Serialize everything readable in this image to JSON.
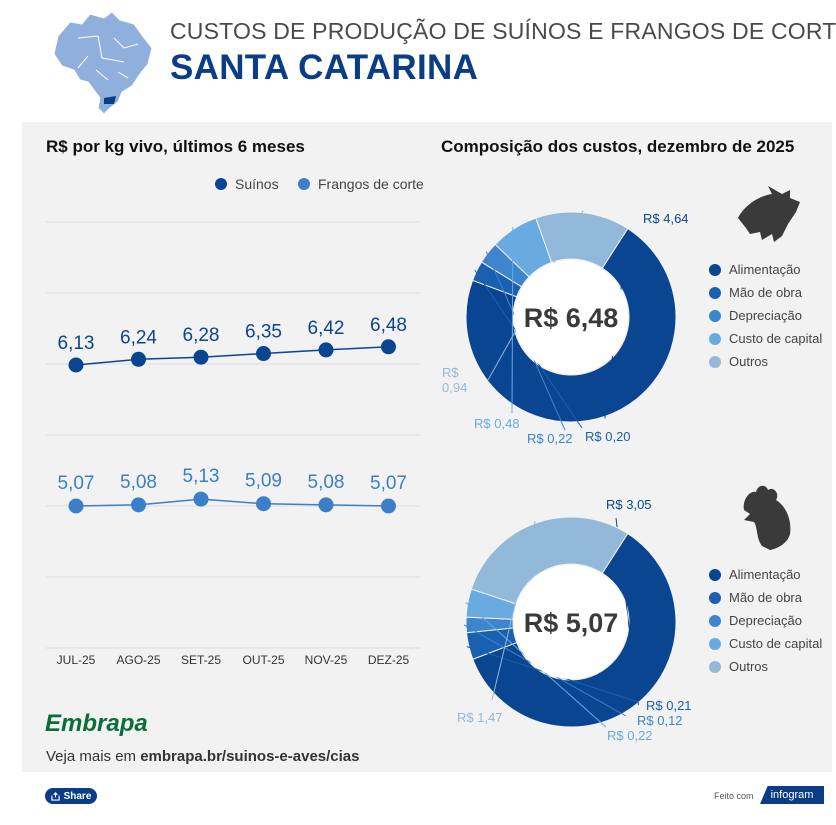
{
  "header": {
    "title": "CUSTOS DE PRODUÇÃO DE SUÍNOS E FRANGOS DE CORTE",
    "subtitle": "SANTA CATARINA"
  },
  "line_section": {
    "title": "R$ por kg vivo, últimos 6 meses",
    "legend": [
      "Suínos",
      "Frangos de corte"
    ]
  },
  "donut_section": {
    "title": "Composição dos custos, dezembro de 2025",
    "legend_top": [
      "Alimentação",
      "Mão de obra",
      "Depreciação",
      "Custo de capital",
      "Outros"
    ],
    "legend_bottom": [
      "Alimentação",
      "Mão de obra",
      "Depreciação",
      "Custo de capital",
      "Outros"
    ]
  },
  "colors": {
    "suinos": "#0a4592",
    "frangos": "#3b7fc8",
    "alimentacao": "#0a4592",
    "mao_de_obra": "#1b5fb0",
    "depreciacao": "#3d85cc",
    "custo_capital": "#69aae0",
    "outros": "#93b9da"
  },
  "chart_data": [
    {
      "type": "line",
      "title": "R$ por kg vivo, últimos 6 meses",
      "categories": [
        "JUL-25",
        "AGO-25",
        "SET-25",
        "OUT-25",
        "NOV-25",
        "DEZ-25"
      ],
      "series": [
        {
          "name": "Suínos",
          "values": [
            6.13,
            6.24,
            6.28,
            6.35,
            6.42,
            6.48
          ],
          "labels": [
            "6,13",
            "6,24",
            "6,28",
            "6,35",
            "6,42",
            "6,48"
          ]
        },
        {
          "name": "Frangos de corte",
          "values": [
            5.07,
            5.08,
            5.13,
            5.09,
            5.08,
            5.07
          ],
          "labels": [
            "5,07",
            "5,08",
            "5,13",
            "5,09",
            "5,08",
            "5,07"
          ]
        }
      ],
      "grid": true
    },
    {
      "type": "pie",
      "center_label": "R$ 6,48",
      "categories": [
        "Alimentação",
        "Mão de obra",
        "Depreciação",
        "Custo de capital",
        "Outros"
      ],
      "values": [
        4.64,
        0.2,
        0.22,
        0.48,
        0.94
      ],
      "labels": [
        "R$ 4,64",
        "R$ 0,20",
        "R$ 0,22",
        "R$ 0,48",
        "R$\n0,94"
      ]
    },
    {
      "type": "pie",
      "center_label": "R$ 5,07",
      "categories": [
        "Alimentação",
        "Mão de obra",
        "Depreciação",
        "Custo de capital",
        "Outros"
      ],
      "values": [
        3.05,
        0.21,
        0.12,
        0.22,
        1.47
      ],
      "labels": [
        "R$ 3,05",
        "R$ 0,21",
        "R$ 0,12",
        "R$ 0,22",
        "R$ 1,47"
      ]
    }
  ],
  "footer": {
    "logo": "Embrapa",
    "prefix": "Veja mais em ",
    "link": "embrapa.br/suinos-e-aves/cias",
    "share": "Share",
    "made_with": "Feito com",
    "brand": "infogram"
  },
  "icons": [
    "brazil-map-icon",
    "pig-icon",
    "chicken-icon",
    "share-icon"
  ]
}
